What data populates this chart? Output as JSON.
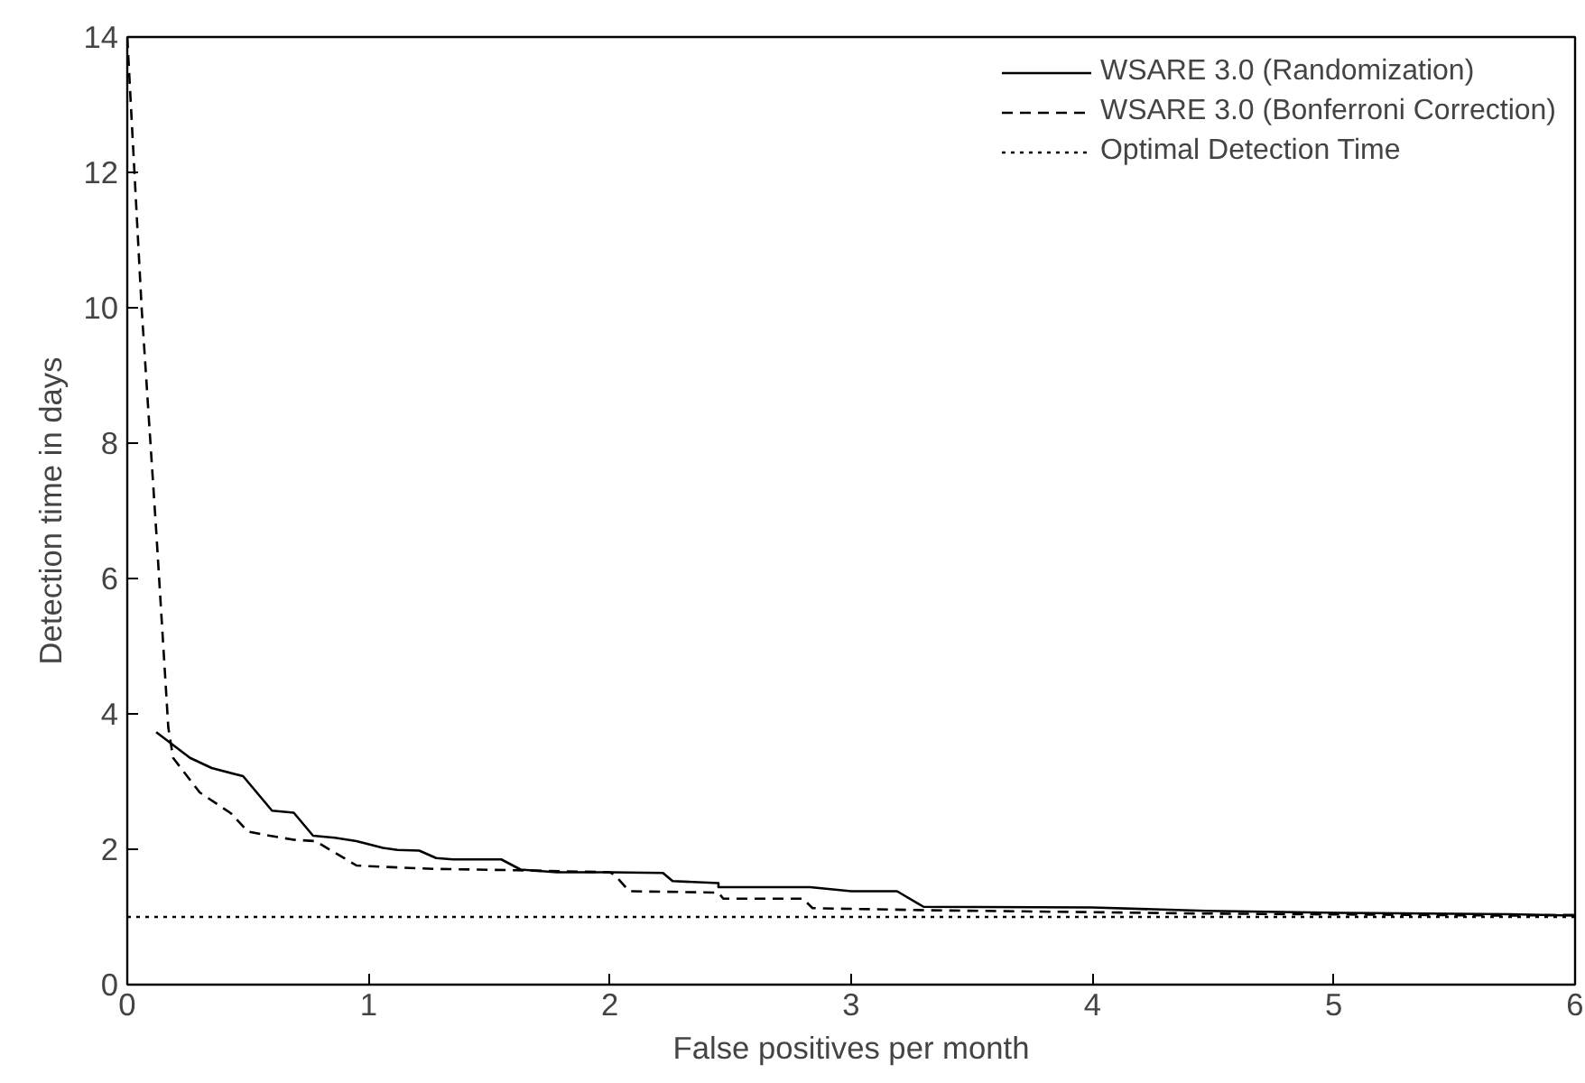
{
  "chart_data": {
    "type": "line",
    "xlabel": "False positives per month",
    "ylabel": "Detection time in days",
    "xlim": [
      0,
      6
    ],
    "ylim": [
      0,
      14
    ],
    "xticks": [
      0,
      1,
      2,
      3,
      4,
      5,
      6
    ],
    "yticks": [
      0,
      2,
      4,
      6,
      8,
      10,
      12,
      14
    ],
    "grid": false,
    "legend": "top right",
    "marker": "none",
    "series": [
      {
        "name": "WSARE 3.0 (Randomization)",
        "color": "#000000",
        "line_style": "solid",
        "x": [
          0.12,
          0.26,
          0.35,
          0.48,
          0.6,
          0.69,
          0.77,
          0.86,
          0.95,
          1.06,
          1.12,
          1.21,
          1.28,
          1.35,
          1.55,
          1.63,
          1.78,
          2.0,
          2.22,
          2.26,
          2.45,
          2.45,
          2.83,
          3.0,
          3.19,
          3.3,
          4.0,
          4.47,
          5.03,
          5.73,
          6.0
        ],
        "values": [
          3.73,
          3.35,
          3.2,
          3.08,
          2.57,
          2.54,
          2.2,
          2.17,
          2.12,
          2.02,
          1.99,
          1.98,
          1.87,
          1.85,
          1.85,
          1.7,
          1.66,
          1.66,
          1.65,
          1.53,
          1.5,
          1.44,
          1.44,
          1.38,
          1.38,
          1.15,
          1.14,
          1.09,
          1.06,
          1.04,
          1.02
        ]
      },
      {
        "name": "WSARE 3.0 (Bonferroni Correction)",
        "color": "#000000",
        "line_style": "dashed",
        "x": [
          0,
          0.06,
          0.12,
          0.17,
          0.19,
          0.3,
          0.43,
          0.5,
          0.59,
          0.69,
          0.78,
          0.95,
          1.06,
          1.27,
          1.61,
          2.0,
          2.02,
          2.08,
          2.45,
          2.47,
          2.8,
          2.84,
          3.3,
          4.47,
          5.73,
          6.0
        ],
        "values": [
          14,
          9.97,
          6.7,
          3.8,
          3.35,
          2.84,
          2.53,
          2.26,
          2.2,
          2.14,
          2.12,
          1.76,
          1.74,
          1.71,
          1.69,
          1.66,
          1.62,
          1.38,
          1.36,
          1.27,
          1.27,
          1.13,
          1.1,
          1.05,
          1.02,
          1.03
        ]
      },
      {
        "name": "Optimal Detection Time",
        "color": "#000000",
        "line_style": "dotted",
        "x": [
          0,
          6
        ],
        "values": [
          1,
          1
        ]
      }
    ]
  }
}
